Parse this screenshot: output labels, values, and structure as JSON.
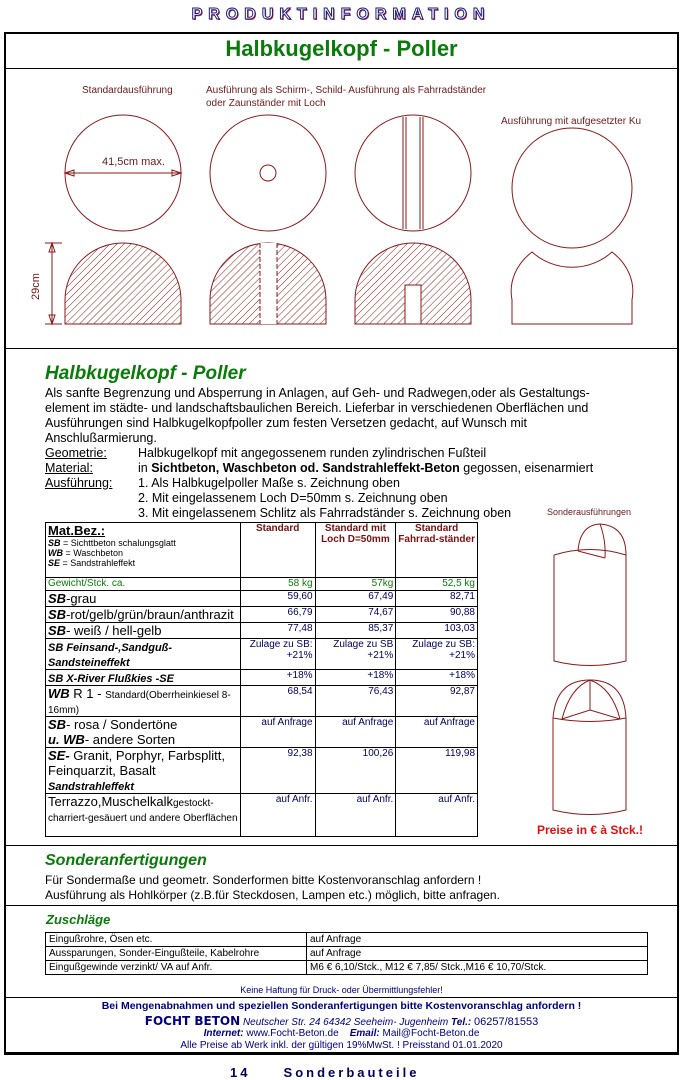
{
  "header": {
    "kicker": "PRODUKTINFORMATION",
    "title": "Halbkugelkopf - Poller"
  },
  "drawings": {
    "label_standard": "Standardausführung",
    "label_schirm_1": "Ausführung als Schirm-, Schild- Ausführung als Fahrradständer",
    "label_schirm_2": "oder Zaunständer mit Loch",
    "label_kugel": "Ausführung mit aufgesetzter Ku",
    "dim_diameter": "41,5cm max.",
    "dim_height": "29cm",
    "line_color": "#8b1a1a"
  },
  "description": {
    "title": "Halbkugelkopf - Poller",
    "intro": "Als sanfte Begrenzung und Absperrung in Anlagen, auf Geh- und Radwegen,oder als Gestaltungs-element im städte-  und landschaftsbaulichen Bereich. Lieferbar in verschiedenen Oberflächen und Ausführungen  sind Halbkugelkopfpoller zum festen Versetzen gedacht, auf Wunsch mit Anschlußarmierung.",
    "geometrie_label": "Geometrie:",
    "geometrie_value": "Halbkugelkopf mit angegossenem runden zylindrischen Fußteil",
    "material_label": "Material:",
    "material_pre": "in ",
    "material_bold": "Sichtbeton, Waschbeton od. Sandstrahleffekt-Beton",
    "material_post": " gegossen, eisenarmiert",
    "ausfuehrung_label": "Ausführung:",
    "ausfuehrung_items": [
      "1. Als Halbkugelpoller Maße s. Zeichnung oben",
      "2. Mit eingelassenem Loch D=50mm s. Zeichnung oben",
      "3. Mit eingelassenem Schlitz als Fahrradständer s. Zeichnung oben"
    ]
  },
  "sonder": {
    "label": "Sonderausführungen",
    "prices_note": "Preise in € à Stck.!"
  },
  "price_table": {
    "legend_title": "Mat.Bez.:",
    "legend": [
      [
        "SB",
        " = Sichttbeton schalungsglatt"
      ],
      [
        "WB",
        " = Waschbeton"
      ],
      [
        "SE",
        " = Sandstrahleffekt"
      ]
    ],
    "columns": [
      "Standard",
      "Standard mit Loch D=50mm",
      "Standard Fahrrad-ständer"
    ],
    "weight": {
      "label": "Gewicht/Stck. ca.",
      "values": [
        "58 kg",
        "57kg",
        "52,5 kg"
      ]
    },
    "rows": [
      {
        "b": "SB",
        "label": "-grau",
        "values": [
          "59,60",
          "67,49",
          "82,71"
        ]
      },
      {
        "b": "SB",
        "label": "-rot/gelb/grün/braun/anthrazit",
        "values": [
          "66,79",
          "74,67",
          "90,88"
        ]
      },
      {
        "b": "SB",
        "label": "- weiß / hell-gelb",
        "values": [
          "77,48",
          "85,37",
          "103,03"
        ]
      },
      {
        "b": "SB Feinsand-,Sandguß-Sandsteineffekt",
        "label": "",
        "values": [
          "Zulage zu SB: +21%",
          "Zulage zu SB +21%",
          "Zulage zu SB: +21%"
        ]
      },
      {
        "b": "SB X-River Flußkies -SE",
        "label": "",
        "values": [
          "+18%",
          "+18%",
          "+18%"
        ]
      },
      {
        "b": "WB",
        "label": " R 1 - ",
        "small": "Standard(Oberrheinkiesel 8-16mm)",
        "values": [
          "68,54",
          "76,43",
          "92,87"
        ]
      },
      {
        "b": "SB",
        "label": "- rosa / Sondertöne",
        "b2": "u. WB",
        "label2": "- andere Sorten",
        "values": [
          "auf Anfrage",
          "auf Anfrage",
          "auf Anfrage"
        ]
      },
      {
        "b": "SE-",
        "label": "  Granit, Porphyr, Farbsplitt, Feinquarzit, Basalt",
        "b2": "Sandstrahleffekt",
        "values": [
          "92,38",
          "100,26",
          "119,98"
        ]
      },
      {
        "b": "",
        "label": "Terrazzo,Muschelkalk",
        "small": "gestockt-charriert-gesäuert und andere Oberflächen",
        "values": [
          "auf Anfr.",
          "auf Anfr.",
          "auf Anfr."
        ]
      }
    ]
  },
  "sonderanfertigungen": {
    "title": "Sonderanfertigungen",
    "lines": [
      "Für Sondermaße  und geometr. Sonderformen bitte Kostenvoranschlag anfordern !",
      "Ausführung als Hohlkörper (z.B.für Steckdosen, Lampen etc.) möglich, bitte anfragen."
    ]
  },
  "zuschlaege": {
    "title": "Zuschläge",
    "rows": [
      [
        "Eingußrohre, Ösen etc.",
        "auf Anfrage"
      ],
      [
        "Aussparungen, Sonder-Eingußteile, Kabelrohre",
        "auf Anfrage"
      ],
      [
        "Eingußgewinde verzinkt/ VA auf Anfr.",
        "M6   € 6,10/Stck., M12  € 7,85/ Stck.,M16  € 10,70/Stck."
      ]
    ]
  },
  "footer": {
    "disclaimer": "Keine Haftung für Druck- oder Übermittlungsfehler!",
    "request": "Bei Mengenabnahmen und speziellen Sonderanfertigungen bitte Kostenvoranschlag anfordern !",
    "company": "FOCHT BETON",
    "address": "Neutscher Str. 24   64342 Seeheim- Jugenheim",
    "tel_label": "Tel.:",
    "tel": "06257/81553",
    "internet_label": "Internet:",
    "internet": "www.Focht-Beton.de",
    "email_label": "Email:",
    "email": "Mail@Focht-Beton.de",
    "prices": "Alle Preise ab Werk inkl. der gültigen 19%MwSt. !    Preisstand 01.01.2020"
  },
  "page": {
    "number": "14",
    "section": "Sonderbauteile"
  }
}
